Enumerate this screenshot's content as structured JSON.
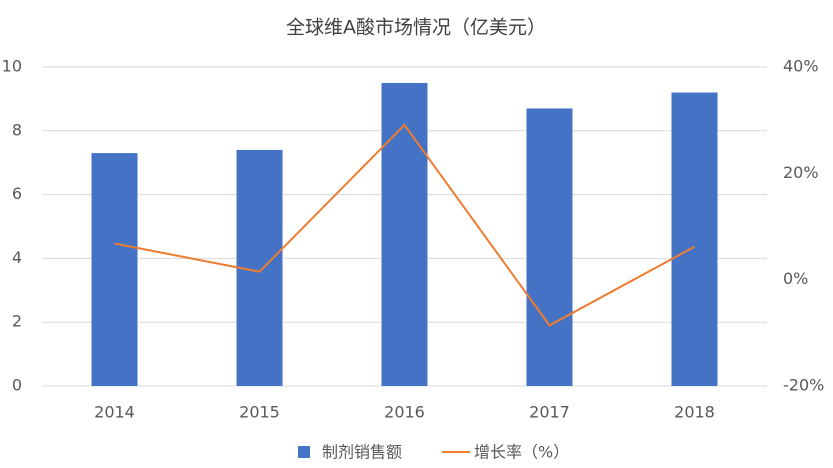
{
  "chart_data": {
    "type": "bar",
    "title": "全球维A酸市场情况（亿美元）",
    "categories": [
      "2014",
      "2015",
      "2016",
      "2017",
      "2018"
    ],
    "series": [
      {
        "name": "制剂销售额",
        "color": "#4472c4",
        "type": "bar",
        "values": [
          7.3,
          7.4,
          9.5,
          8.7,
          9.2
        ]
      },
      {
        "name": "增长率（%）",
        "color": "#ed7d31",
        "type": "line",
        "axis": "y2",
        "values": [
          6.8,
          1.5,
          29.1,
          -8.6,
          6.2
        ]
      }
    ],
    "ylim": [
      0,
      10
    ],
    "yticks": [
      0,
      2,
      4,
      6,
      8,
      10
    ],
    "y2lim": [
      -20,
      40
    ],
    "y2ticks": [
      {
        "value": -20,
        "label": "-20%"
      },
      {
        "value": 0,
        "label": "0%"
      },
      {
        "value": 20,
        "label": "20%"
      },
      {
        "value": 40,
        "label": "40%"
      }
    ],
    "grid": true,
    "legend": "bottom"
  }
}
